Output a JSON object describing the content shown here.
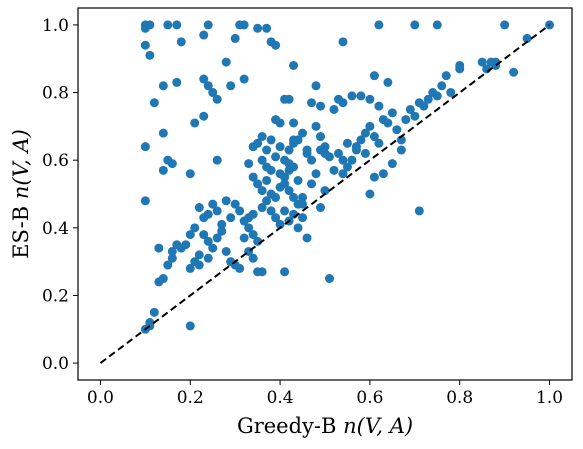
{
  "chart_data": {
    "type": "scatter",
    "title": "",
    "xlabel_prefix": "Greedy-B ",
    "xlabel_math": "n(V, A)",
    "ylabel_prefix": "ES-B ",
    "ylabel_math": "n(V, A)",
    "xlim": [
      -0.05,
      1.05
    ],
    "ylim": [
      -0.05,
      1.05
    ],
    "xticks": [
      0.0,
      0.2,
      0.4,
      0.6,
      0.8,
      1.0
    ],
    "yticks": [
      0.0,
      0.2,
      0.4,
      0.6,
      0.8,
      1.0
    ],
    "xtick_labels": [
      "0.0",
      "0.2",
      "0.4",
      "0.6",
      "0.8",
      "1.0"
    ],
    "ytick_labels": [
      "0.0",
      "0.2",
      "0.4",
      "0.6",
      "0.8",
      "1.0"
    ],
    "grid": false,
    "legend": "none",
    "marker_color": "#1f77b4",
    "reference_line": {
      "style": "dashed",
      "color": "#000000",
      "from": [
        0.0,
        0.0
      ],
      "to": [
        1.0,
        1.0
      ]
    },
    "points": [
      [
        0.1,
        1.0
      ],
      [
        0.1,
        0.99
      ],
      [
        0.11,
        1.0
      ],
      [
        0.1,
        0.94
      ],
      [
        0.11,
        0.91
      ],
      [
        0.15,
        1.0
      ],
      [
        0.17,
        1.0
      ],
      [
        0.18,
        0.95
      ],
      [
        0.23,
        0.97
      ],
      [
        0.24,
        1.0
      ],
      [
        0.31,
        1.0
      ],
      [
        0.32,
        1.0
      ],
      [
        0.35,
        0.99
      ],
      [
        0.37,
        0.99
      ],
      [
        0.38,
        0.95
      ],
      [
        0.39,
        0.94
      ],
      [
        0.3,
        0.96
      ],
      [
        0.28,
        0.89
      ],
      [
        0.32,
        0.84
      ],
      [
        0.43,
        0.88
      ],
      [
        0.14,
        0.82
      ],
      [
        0.17,
        0.83
      ],
      [
        0.23,
        0.84
      ],
      [
        0.24,
        0.82
      ],
      [
        0.25,
        0.8
      ],
      [
        0.26,
        0.78
      ],
      [
        0.12,
        0.77
      ],
      [
        0.21,
        0.71
      ],
      [
        0.23,
        0.73
      ],
      [
        0.29,
        0.82
      ],
      [
        0.41,
        0.78
      ],
      [
        0.42,
        0.78
      ],
      [
        0.4,
        0.71
      ],
      [
        0.43,
        0.71
      ],
      [
        0.1,
        0.64
      ],
      [
        0.14,
        0.68
      ],
      [
        0.15,
        0.6
      ],
      [
        0.16,
        0.59
      ],
      [
        0.1,
        0.48
      ],
      [
        0.26,
        0.6
      ],
      [
        0.14,
        0.57
      ],
      [
        0.2,
        0.56
      ],
      [
        0.34,
        0.64
      ],
      [
        0.35,
        0.65
      ],
      [
        0.36,
        0.6
      ],
      [
        0.37,
        0.63
      ],
      [
        0.38,
        0.57
      ],
      [
        0.39,
        0.61
      ],
      [
        0.4,
        0.64
      ],
      [
        0.41,
        0.6
      ],
      [
        0.42,
        0.59
      ],
      [
        0.43,
        0.66
      ],
      [
        0.33,
        0.59
      ],
      [
        0.34,
        0.55
      ],
      [
        0.35,
        0.53
      ],
      [
        0.36,
        0.51
      ],
      [
        0.37,
        0.54
      ],
      [
        0.38,
        0.5
      ],
      [
        0.39,
        0.49
      ],
      [
        0.4,
        0.52
      ],
      [
        0.41,
        0.55
      ],
      [
        0.42,
        0.57
      ],
      [
        0.43,
        0.58
      ],
      [
        0.44,
        0.54
      ],
      [
        0.45,
        0.49
      ],
      [
        0.46,
        0.62
      ],
      [
        0.47,
        0.53
      ],
      [
        0.48,
        0.7
      ],
      [
        0.49,
        0.67
      ],
      [
        0.5,
        0.64
      ],
      [
        0.36,
        0.46
      ],
      [
        0.37,
        0.48
      ],
      [
        0.38,
        0.45
      ],
      [
        0.39,
        0.43
      ],
      [
        0.4,
        0.41
      ],
      [
        0.41,
        0.45
      ],
      [
        0.42,
        0.42
      ],
      [
        0.43,
        0.44
      ],
      [
        0.44,
        0.4
      ],
      [
        0.45,
        0.47
      ],
      [
        0.3,
        0.47
      ],
      [
        0.31,
        0.45
      ],
      [
        0.32,
        0.42
      ],
      [
        0.33,
        0.4
      ],
      [
        0.34,
        0.38
      ],
      [
        0.35,
        0.36
      ],
      [
        0.28,
        0.48
      ],
      [
        0.29,
        0.43
      ],
      [
        0.27,
        0.41
      ],
      [
        0.26,
        0.45
      ],
      [
        0.25,
        0.47
      ],
      [
        0.24,
        0.44
      ],
      [
        0.23,
        0.43
      ],
      [
        0.22,
        0.46
      ],
      [
        0.21,
        0.4
      ],
      [
        0.2,
        0.38
      ],
      [
        0.19,
        0.35
      ],
      [
        0.18,
        0.34
      ],
      [
        0.17,
        0.35
      ],
      [
        0.16,
        0.33
      ],
      [
        0.23,
        0.38
      ],
      [
        0.24,
        0.36
      ],
      [
        0.25,
        0.34
      ],
      [
        0.22,
        0.32
      ],
      [
        0.21,
        0.3
      ],
      [
        0.2,
        0.28
      ],
      [
        0.22,
        0.29
      ],
      [
        0.24,
        0.31
      ],
      [
        0.26,
        0.37
      ],
      [
        0.27,
        0.39
      ],
      [
        0.28,
        0.33
      ],
      [
        0.29,
        0.3
      ],
      [
        0.3,
        0.29
      ],
      [
        0.31,
        0.28
      ],
      [
        0.32,
        0.37
      ],
      [
        0.35,
        0.27
      ],
      [
        0.15,
        0.29
      ],
      [
        0.16,
        0.31
      ],
      [
        0.13,
        0.34
      ],
      [
        0.14,
        0.25
      ],
      [
        0.13,
        0.24
      ],
      [
        0.12,
        0.15
      ],
      [
        0.11,
        0.12
      ],
      [
        0.1,
        0.1
      ],
      [
        0.11,
        0.11
      ],
      [
        0.2,
        0.11
      ],
      [
        0.33,
        0.43
      ],
      [
        0.34,
        0.44
      ],
      [
        0.37,
        0.58
      ],
      [
        0.36,
        0.67
      ],
      [
        0.38,
        0.66
      ],
      [
        0.39,
        0.72
      ],
      [
        0.4,
        0.56
      ],
      [
        0.41,
        0.53
      ],
      [
        0.42,
        0.51
      ],
      [
        0.43,
        0.49
      ],
      [
        0.44,
        0.47
      ],
      [
        0.45,
        0.43
      ],
      [
        0.46,
        0.37
      ],
      [
        0.47,
        0.6
      ],
      [
        0.48,
        0.56
      ],
      [
        0.49,
        0.63
      ],
      [
        0.5,
        0.51
      ],
      [
        0.51,
        0.61
      ],
      [
        0.52,
        0.57
      ],
      [
        0.53,
        0.62
      ],
      [
        0.54,
        0.56
      ],
      [
        0.55,
        0.58
      ],
      [
        0.56,
        0.6
      ],
      [
        0.57,
        0.64
      ],
      [
        0.58,
        0.66
      ],
      [
        0.59,
        0.68
      ],
      [
        0.6,
        0.7
      ],
      [
        0.61,
        0.67
      ],
      [
        0.62,
        0.65
      ],
      [
        0.63,
        0.72
      ],
      [
        0.64,
        0.71
      ],
      [
        0.65,
        0.74
      ],
      [
        0.66,
        0.69
      ],
      [
        0.67,
        0.66
      ],
      [
        0.68,
        0.72
      ],
      [
        0.69,
        0.75
      ],
      [
        0.7,
        0.73
      ],
      [
        0.71,
        0.77
      ],
      [
        0.72,
        0.76
      ],
      [
        0.73,
        0.78
      ],
      [
        0.74,
        0.8
      ],
      [
        0.75,
        0.79
      ],
      [
        0.76,
        0.82
      ],
      [
        0.77,
        0.85
      ],
      [
        0.78,
        0.8
      ],
      [
        0.8,
        0.87
      ],
      [
        0.8,
        0.88
      ],
      [
        0.85,
        0.89
      ],
      [
        0.86,
        0.87
      ],
      [
        0.87,
        0.89
      ],
      [
        0.88,
        0.89
      ],
      [
        0.88,
        0.88
      ],
      [
        0.9,
        1.0
      ],
      [
        0.92,
        0.86
      ],
      [
        0.95,
        0.96
      ],
      [
        1.0,
        1.0
      ],
      [
        0.75,
        1.0
      ],
      [
        0.7,
        1.0
      ],
      [
        0.62,
        1.0
      ],
      [
        0.54,
        0.95
      ],
      [
        0.6,
        0.78
      ],
      [
        0.62,
        0.76
      ],
      [
        0.64,
        0.83
      ],
      [
        0.61,
        0.85
      ],
      [
        0.58,
        0.79
      ],
      [
        0.56,
        0.79
      ],
      [
        0.53,
        0.78
      ],
      [
        0.54,
        0.77
      ],
      [
        0.52,
        0.75
      ],
      [
        0.49,
        0.76
      ],
      [
        0.48,
        0.82
      ],
      [
        0.47,
        0.77
      ],
      [
        0.45,
        0.68
      ],
      [
        0.44,
        0.66
      ],
      [
        0.43,
        0.65
      ],
      [
        0.42,
        0.63
      ],
      [
        0.46,
        0.63
      ],
      [
        0.5,
        0.62
      ],
      [
        0.55,
        0.65
      ],
      [
        0.57,
        0.63
      ],
      [
        0.59,
        0.62
      ],
      [
        0.6,
        0.5
      ],
      [
        0.61,
        0.55
      ],
      [
        0.63,
        0.56
      ],
      [
        0.65,
        0.59
      ],
      [
        0.67,
        0.63
      ],
      [
        0.71,
        0.45
      ],
      [
        0.54,
        0.6
      ],
      [
        0.51,
        0.25
      ],
      [
        0.49,
        0.46
      ],
      [
        0.41,
        0.27
      ],
      [
        0.36,
        0.27
      ],
      [
        0.34,
        0.31
      ],
      [
        0.33,
        0.33
      ]
    ]
  }
}
